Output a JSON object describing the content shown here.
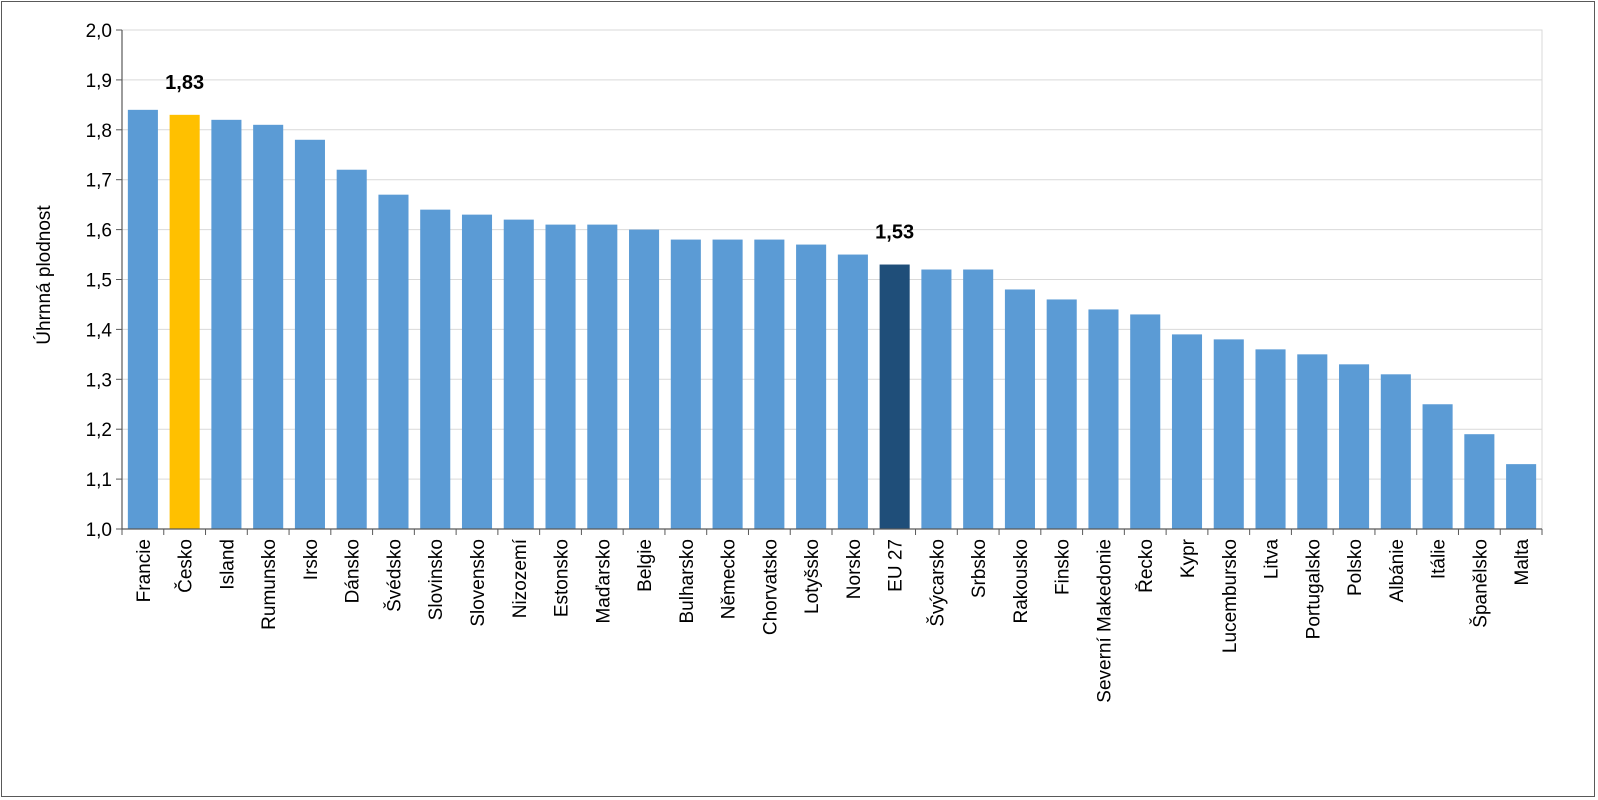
{
  "chart_data": {
    "type": "bar",
    "ylabel": "Úhrnná plodnost",
    "ylim": [
      1.0,
      2.0
    ],
    "yticks": [
      "1,0",
      "1,1",
      "1,2",
      "1,3",
      "1,4",
      "1,5",
      "1,6",
      "1,7",
      "1,8",
      "1,9",
      "2,0"
    ],
    "grid": true,
    "categories": [
      "Francie",
      "Česko",
      "Island",
      "Rumunsko",
      "Irsko",
      "Dánsko",
      "Švédsko",
      "Slovinsko",
      "Slovensko",
      "Nizozemí",
      "Estonsko",
      "Maďarsko",
      "Belgie",
      "Bulharsko",
      "Německo",
      "Chorvatsko",
      "Lotyšsko",
      "Norsko",
      "EU 27",
      "Švýcarsko",
      "Srbsko",
      "Rakousko",
      "Finsko",
      "Severní Makedonie",
      "Řecko",
      "Kypr",
      "Lucembursko",
      "Litva",
      "Portugalsko",
      "Polsko",
      "Albánie",
      "Itálie",
      "Španělsko",
      "Malta"
    ],
    "values": [
      1.84,
      1.83,
      1.82,
      1.81,
      1.78,
      1.72,
      1.67,
      1.64,
      1.63,
      1.62,
      1.61,
      1.61,
      1.6,
      1.58,
      1.58,
      1.58,
      1.57,
      1.55,
      1.53,
      1.52,
      1.52,
      1.48,
      1.46,
      1.44,
      1.43,
      1.39,
      1.38,
      1.36,
      1.35,
      1.33,
      1.31,
      1.25,
      1.19,
      1.13
    ],
    "colors": {
      "default": "#5b9bd5",
      "highlight": "#ffc000",
      "aggregate": "#1f4e79",
      "grid": "#d9d9d9",
      "axis": "#595959"
    },
    "highlight_category": "Česko",
    "aggregate_category": "EU 27",
    "data_labels": [
      {
        "category": "Česko",
        "text": "1,83"
      },
      {
        "category": "EU 27",
        "text": "1,53"
      }
    ]
  }
}
